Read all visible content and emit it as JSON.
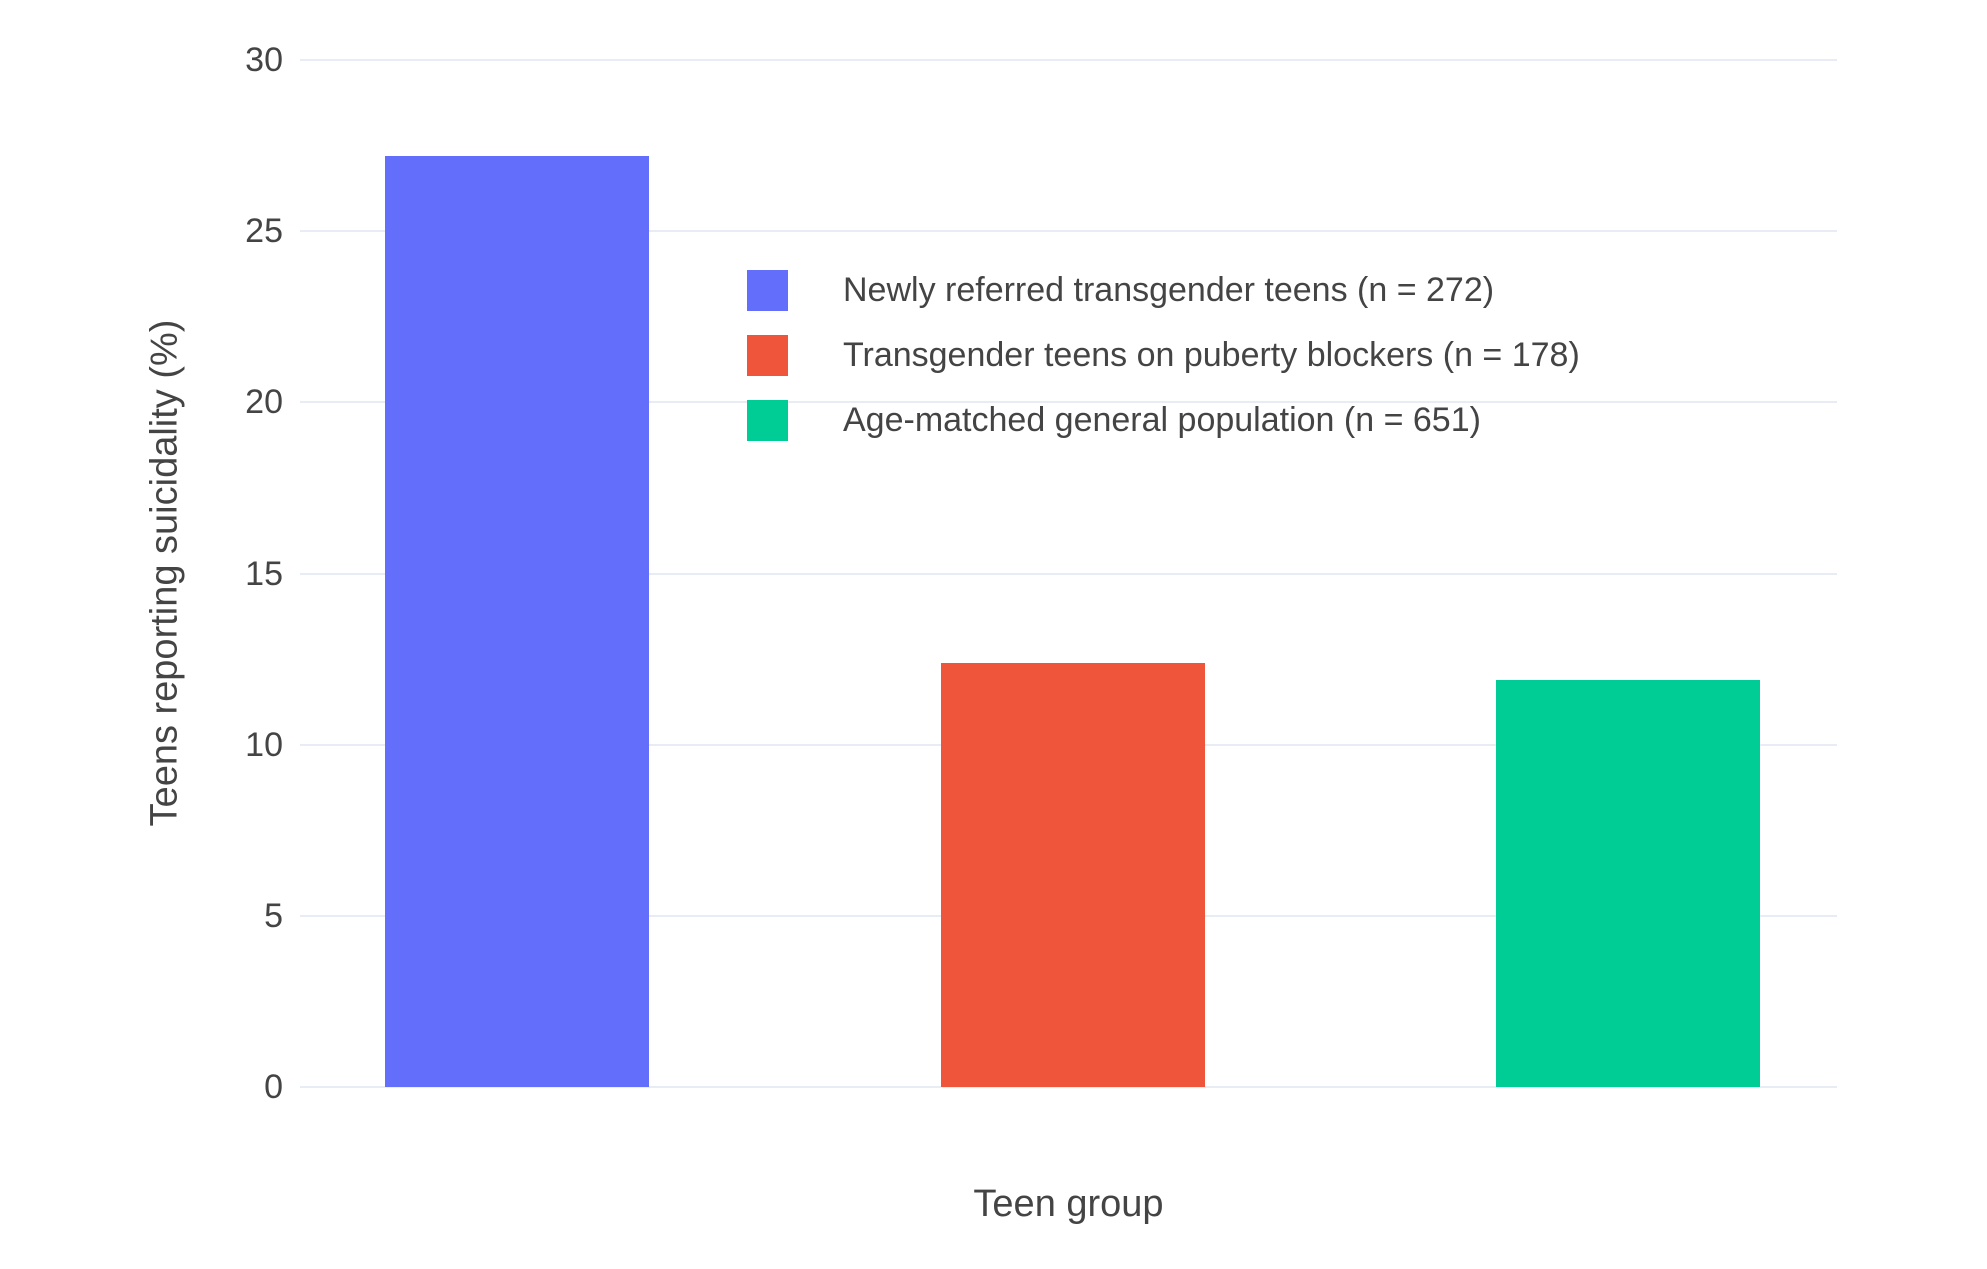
{
  "chart_data": {
    "type": "bar",
    "title": "",
    "categories": [
      "Newly referred transgender teens (n = 272)",
      "Transgender teens on puberty blockers (n = 178)",
      "Age-matched general population (n = 651)"
    ],
    "values": [
      27.2,
      12.4,
      11.9
    ],
    "series_colors": [
      "#636EFA",
      "#EF553B",
      "#00CC96"
    ],
    "xlabel": "Teen group",
    "ylabel": "Teens reporting suicidality (%)",
    "ylim": [
      0,
      30
    ],
    "yticks": [
      0,
      5,
      10,
      15,
      20,
      25,
      30
    ],
    "grid": true,
    "legend_position": "inside top-center",
    "layout_hints": {
      "bar_centers_pct": [
        14.1,
        50.3,
        86.4
      ],
      "bar_width_pct": 17.2,
      "background": "#ffffff",
      "gridline_color": "#E8ECF5",
      "text_color": "#444444"
    }
  },
  "legend": {
    "items": [
      {
        "label": "Newly referred transgender teens (n = 272)",
        "color": "#636EFA"
      },
      {
        "label": "Transgender teens on puberty blockers (n = 178)",
        "color": "#EF553B"
      },
      {
        "label": "Age-matched general population (n = 651)",
        "color": "#00CC96"
      }
    ]
  },
  "axes": {
    "x_title": "Teen group",
    "y_title": "Teens reporting suicidality (%)",
    "y_tick_labels": [
      "0",
      "5",
      "10",
      "15",
      "20",
      "25",
      "30"
    ]
  }
}
